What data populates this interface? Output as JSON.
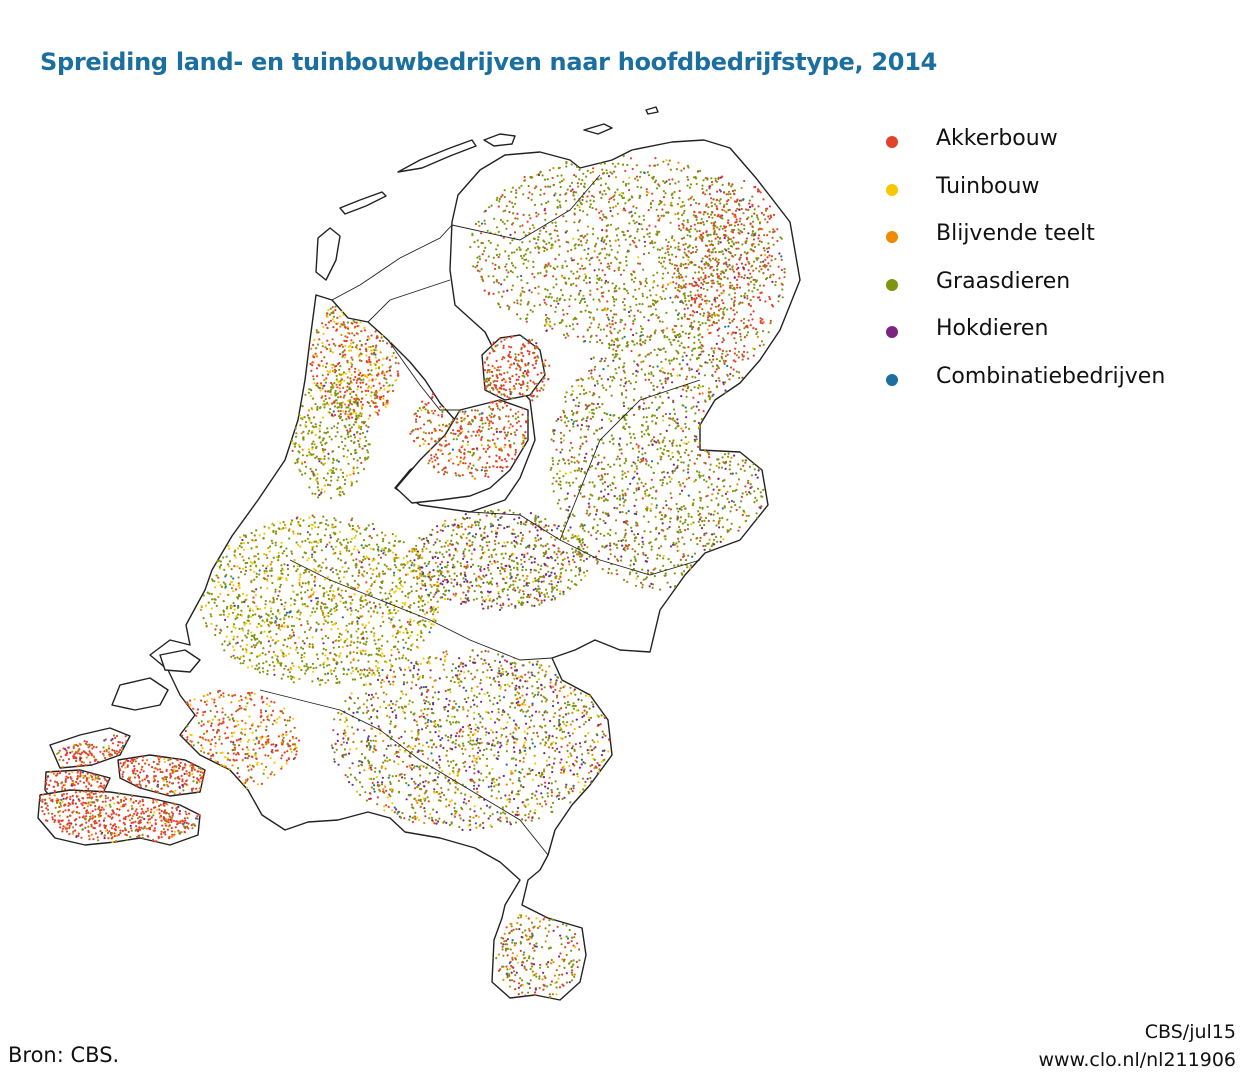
{
  "title": "Spreiding land- en tuinbouwbedrijven naar hoofdbedrijfstype, 2014",
  "legend": [
    {
      "label": "Akkerbouw",
      "color": "#e4412b"
    },
    {
      "label": "Tuinbouw",
      "color": "#f7c800"
    },
    {
      "label": "Blijvende teelt",
      "color": "#ee8a00"
    },
    {
      "label": "Graasdieren",
      "color": "#7f9410"
    },
    {
      "label": "Hokdieren",
      "color": "#7b2583"
    },
    {
      "label": "Combinatiebedrijven",
      "color": "#1c6f9e"
    }
  ],
  "source": "Bron: CBS.",
  "credit": {
    "line1": "CBS/jul15",
    "line2": "www.clo.nl/nl211906"
  }
}
